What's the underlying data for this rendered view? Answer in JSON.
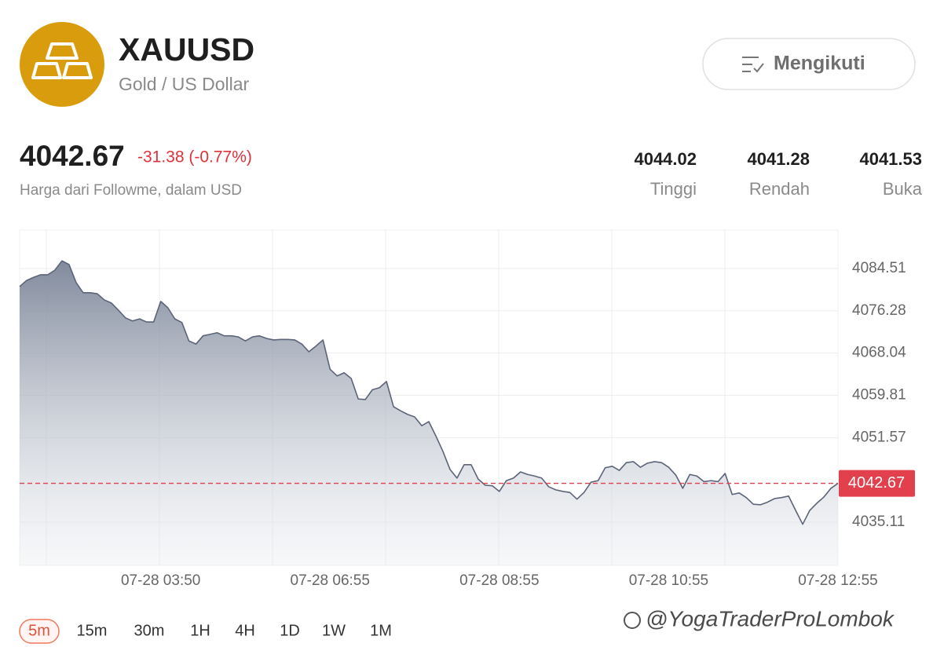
{
  "header": {
    "symbol": "XAUUSD",
    "subtitle": "Gold / US Dollar",
    "follow_button": "Mengikuti",
    "price": "4042.67",
    "change": "-31.38 (-0.77%)",
    "note": "Harga dari Followme, dalam USD",
    "stats": [
      {
        "value": "4044.02",
        "label": "Tinggi"
      },
      {
        "value": "4041.28",
        "label": "Rendah"
      },
      {
        "value": "4041.53",
        "label": "Buka"
      }
    ]
  },
  "chart_data": {
    "type": "area",
    "categories": [
      null,
      null,
      null,
      null,
      null,
      null,
      null,
      null,
      null,
      null,
      null,
      null,
      null,
      null,
      null,
      null,
      null,
      null,
      null,
      null,
      "07-28 03:50",
      null,
      null,
      null,
      null,
      null,
      null,
      null,
      null,
      null,
      null,
      null,
      null,
      null,
      null,
      null,
      null,
      null,
      null,
      null,
      null,
      null,
      null,
      null,
      "07-28 06:55",
      null,
      null,
      null,
      null,
      null,
      null,
      null,
      null,
      null,
      null,
      null,
      null,
      null,
      null,
      null,
      null,
      null,
      null,
      null,
      null,
      null,
      null,
      null,
      "07-28 08:55",
      null,
      null,
      null,
      null,
      null,
      null,
      null,
      null,
      null,
      null,
      null,
      null,
      null,
      null,
      null,
      null,
      null,
      null,
      null,
      null,
      null,
      null,
      null,
      "07-28 10:55",
      null,
      null,
      null,
      null,
      null,
      null,
      null,
      null,
      null,
      null,
      null,
      null,
      null,
      null,
      null,
      null,
      null,
      null,
      null,
      null,
      null,
      null,
      null,
      "07-28 12:55"
    ],
    "values": [
      4081.0,
      4082.2,
      4082.8,
      4083.3,
      4083.3,
      4084.2,
      4086.0,
      4085.3,
      4081.8,
      4079.8,
      4079.8,
      4079.6,
      4078.4,
      4077.8,
      4076.4,
      4074.9,
      4074.3,
      4074.7,
      4074.1,
      4074.1,
      4078.1,
      4076.9,
      4074.7,
      4074.0,
      4070.4,
      4069.8,
      4071.4,
      4071.7,
      4072.0,
      4071.4,
      4071.4,
      4071.2,
      4070.4,
      4071.2,
      4071.4,
      4070.9,
      4070.6,
      4070.7,
      4070.7,
      4070.6,
      4069.8,
      4068.3,
      4069.4,
      4070.6,
      4064.9,
      4063.6,
      4064.2,
      4063.1,
      4059.1,
      4059.0,
      4060.9,
      4061.3,
      4062.5,
      4057.6,
      4056.8,
      4056.1,
      4055.6,
      4053.9,
      4054.7,
      4051.9,
      4048.9,
      4045.4,
      4043.7,
      4046.3,
      4046.3,
      4043.5,
      4042.3,
      4042.2,
      4041.1,
      4043.2,
      4043.7,
      4044.9,
      4044.4,
      4044.1,
      4043.7,
      4042.0,
      4041.4,
      4041.1,
      4040.9,
      4039.6,
      4040.9,
      4042.9,
      4043.2,
      4045.7,
      4046.0,
      4045.2,
      4046.7,
      4046.9,
      4045.8,
      4046.6,
      4046.9,
      4046.7,
      4045.8,
      4044.3,
      4041.7,
      4044.4,
      4044.1,
      4043.0,
      4043.2,
      4043.0,
      4044.6,
      4040.5,
      4040.8,
      4039.9,
      4038.6,
      4038.5,
      4039.0,
      4039.7,
      4039.9,
      4040.2,
      4037.4,
      4034.7,
      4037.4,
      4038.8,
      4040.0,
      4041.7,
      4042.67
    ],
    "color": "#5b6478",
    "ylim": [
      4026.7,
      4092.0
    ],
    "yticks": [
      4035.11,
      4051.57,
      4059.81,
      4068.04,
      4076.28,
      4084.51
    ],
    "grid": true,
    "last_price": 4042.67,
    "last_price_color": "#e2404c"
  },
  "timeframes": {
    "items": [
      "5m",
      "15m",
      "30m",
      "1H",
      "4H",
      "1D",
      "1W",
      "1M"
    ],
    "active": 0
  },
  "watermark": "@YogaTraderProLombok"
}
